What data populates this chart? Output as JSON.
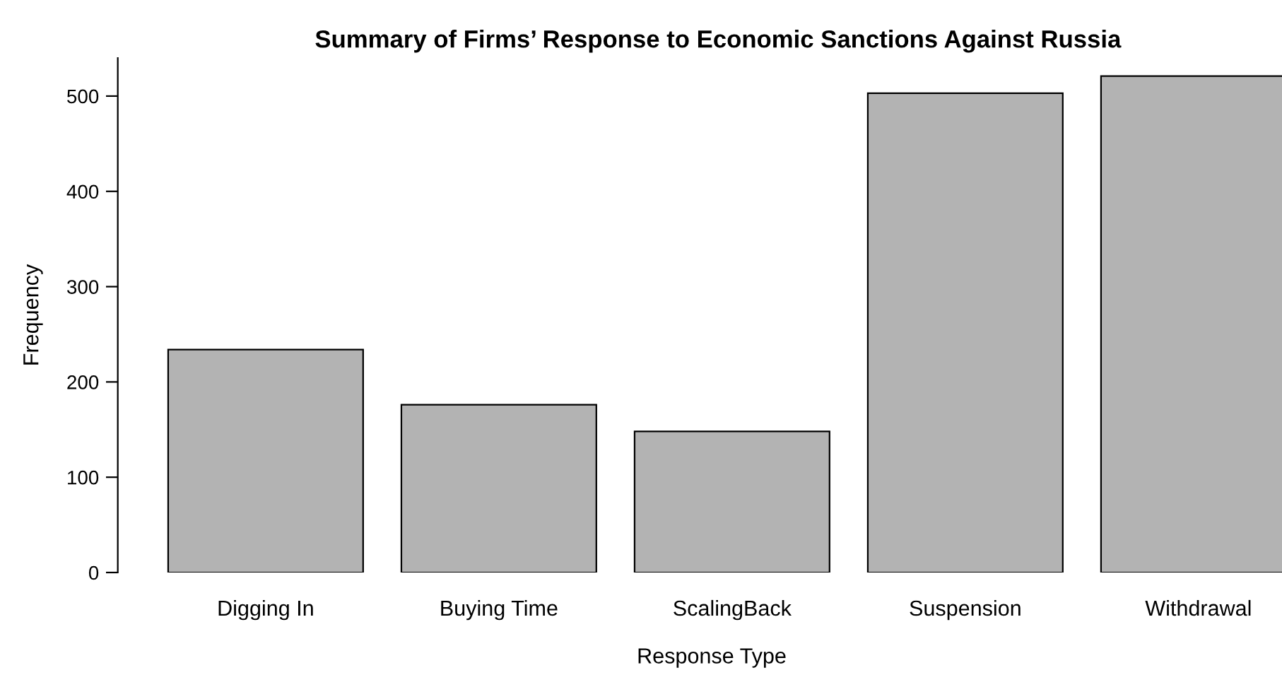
{
  "chart_data": {
    "type": "bar",
    "title": "Summary of Firms’ Response to Economic Sanctions Against Russia",
    "xlabel": "Response Type",
    "ylabel": "Frequency",
    "categories": [
      "Digging In",
      "Buying Time",
      "ScalingBack",
      "Suspension",
      "Withdrawal"
    ],
    "values": [
      234,
      176,
      148,
      503,
      521
    ],
    "color": "#b3b3b3",
    "ylim": [
      0,
      540
    ],
    "yticks": [
      0,
      100,
      200,
      300,
      400,
      500
    ],
    "grid": false
  }
}
